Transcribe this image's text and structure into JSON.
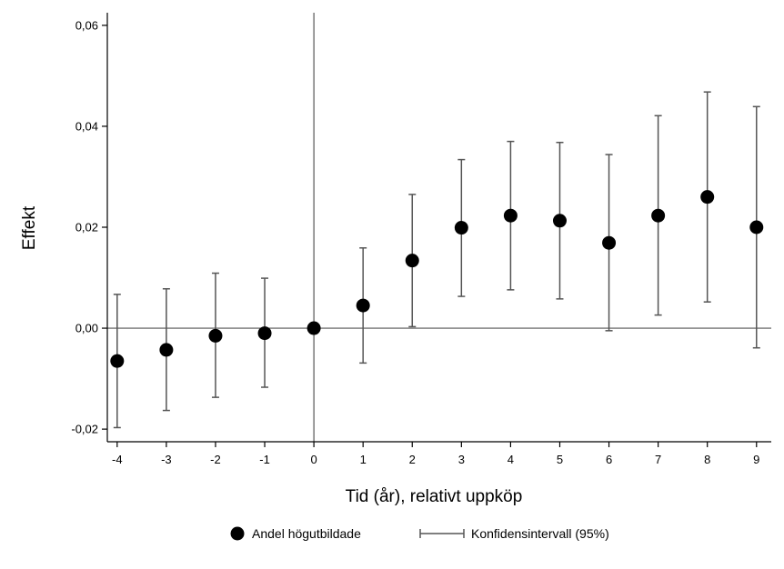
{
  "chart_data": {
    "type": "scatter",
    "title": "",
    "xlabel": "Tid (år), relativt uppköp",
    "ylabel": "Effekt",
    "xlim": [
      -4.2,
      9.3
    ],
    "ylim": [
      -0.0225,
      0.0625
    ],
    "xticks": [
      -4,
      -3,
      -2,
      -1,
      0,
      1,
      2,
      3,
      4,
      5,
      6,
      7,
      8,
      9
    ],
    "xtick_labels": [
      "-4",
      "-3",
      "-2",
      "-1",
      "0",
      "1",
      "2",
      "3",
      "4",
      "5",
      "6",
      "7",
      "8",
      "9"
    ],
    "yticks": [
      -0.02,
      0.0,
      0.02,
      0.04,
      0.06
    ],
    "ytick_labels": [
      "-0,02",
      "0,00",
      "0,02",
      "0,04",
      "0,06"
    ],
    "reference_lines": {
      "vertical_x": 0,
      "horizontal_y": 0
    },
    "grid": false,
    "legend_position": "bottom",
    "series": [
      {
        "name": "Andel högutbildade",
        "x": [
          -4,
          -3,
          -2,
          -1,
          0,
          1,
          2,
          3,
          4,
          5,
          6,
          7,
          8,
          9
        ],
        "y": [
          -0.0065,
          -0.0043,
          -0.0015,
          -0.001,
          0.0,
          0.0045,
          0.0134,
          0.0199,
          0.0223,
          0.0213,
          0.0169,
          0.0223,
          0.026,
          0.02
        ],
        "lower": [
          -0.0197,
          -0.0163,
          -0.0137,
          -0.0117,
          0.0,
          -0.0069,
          0.0003,
          0.0063,
          0.0076,
          0.0058,
          -0.0005,
          0.0026,
          0.0052,
          -0.0039
        ],
        "upper": [
          0.0067,
          0.0078,
          0.0109,
          0.0099,
          0.0,
          0.0159,
          0.0265,
          0.0334,
          0.037,
          0.0368,
          0.0344,
          0.0421,
          0.0468,
          0.0439
        ]
      }
    ],
    "legend": {
      "point_label": "Andel högutbildade",
      "ci_label": "Konfidensintervall (95%)"
    },
    "colors": {
      "marker": "#000000",
      "ci": "#555555",
      "axis": "#000000",
      "refline": "#555555"
    }
  }
}
